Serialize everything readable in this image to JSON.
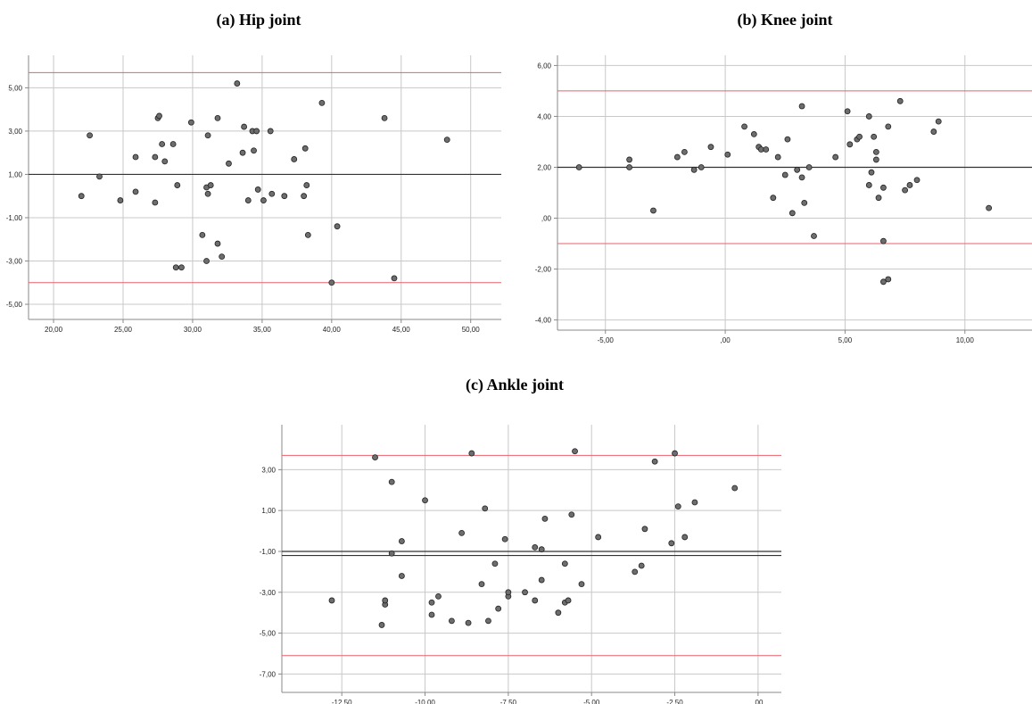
{
  "colors": {
    "grid": "#c8c8c8",
    "frame": "#8a8a8a",
    "limit": "#e8616b",
    "mean": "#333333",
    "point": "#6d6d6d"
  },
  "panels": [
    {
      "title": "(a) Hip joint"
    },
    {
      "title": "(b) Knee joint"
    },
    {
      "title": "(c) Ankle joint"
    }
  ],
  "chart_data": [
    {
      "type": "scatter",
      "title": "(a) Hip joint",
      "xlabel": "",
      "ylabel": "",
      "xlim": [
        18.2,
        52.2
      ],
      "ylim": [
        -5.7,
        6.5
      ],
      "grid": true,
      "xticks": [
        20,
        25,
        30,
        35,
        40,
        45,
        50
      ],
      "xtick_labels": [
        "20,00",
        "25,00",
        "30,00",
        "35,00",
        "40,00",
        "45,00",
        "50,00"
      ],
      "yticks": [
        -5,
        -3,
        -1,
        1,
        3,
        5
      ],
      "ytick_labels": [
        "-5,00",
        "-3,00",
        "-1,00",
        "1,00",
        "3,00",
        "5,00"
      ],
      "mean_line": 1.0,
      "limit_lines": [
        5.7,
        -4.0
      ],
      "points": [
        [
          22,
          0
        ],
        [
          22.6,
          2.8
        ],
        [
          23.3,
          0.9
        ],
        [
          24.8,
          -0.2
        ],
        [
          25.9,
          0.2
        ],
        [
          25.9,
          1.8
        ],
        [
          27.3,
          1.8
        ],
        [
          27.3,
          -0.3
        ],
        [
          27.5,
          3.6
        ],
        [
          27.6,
          3.7
        ],
        [
          27.8,
          2.4
        ],
        [
          28,
          1.6
        ],
        [
          28.6,
          2.4
        ],
        [
          28.8,
          -3.3
        ],
        [
          28.9,
          0.5
        ],
        [
          29.2,
          -3.3
        ],
        [
          29.9,
          3.4
        ],
        [
          30.7,
          -1.8
        ],
        [
          31,
          0.4
        ],
        [
          31,
          -3
        ],
        [
          31.1,
          0.1
        ],
        [
          31.1,
          2.8
        ],
        [
          31.3,
          0.5
        ],
        [
          31.8,
          3.6
        ],
        [
          31.8,
          -2.2
        ],
        [
          32.1,
          -2.8
        ],
        [
          32.6,
          1.5
        ],
        [
          33.2,
          5.2
        ],
        [
          33.6,
          2
        ],
        [
          33.7,
          3.2
        ],
        [
          34,
          -0.2
        ],
        [
          34.3,
          3
        ],
        [
          34.4,
          2.1
        ],
        [
          34.6,
          3
        ],
        [
          34.7,
          0.3
        ],
        [
          35.1,
          -0.2
        ],
        [
          35.6,
          3
        ],
        [
          35.7,
          0.1
        ],
        [
          36.6,
          0
        ],
        [
          37.3,
          1.7
        ],
        [
          38,
          0
        ],
        [
          38.1,
          2.2
        ],
        [
          38.2,
          0.5
        ],
        [
          38.3,
          -1.8
        ],
        [
          39.3,
          4.3
        ],
        [
          40,
          -4
        ],
        [
          40.4,
          -1.4
        ],
        [
          43.8,
          3.6
        ],
        [
          44.5,
          -3.8
        ],
        [
          48.3,
          2.6
        ]
      ]
    },
    {
      "type": "scatter",
      "title": "(b) Knee joint",
      "xlabel": "",
      "ylabel": "",
      "xlim": [
        -7.0,
        12.8
      ],
      "ylim": [
        -4.4,
        6.4
      ],
      "grid": true,
      "xticks": [
        -5,
        0,
        5,
        10
      ],
      "xtick_labels": [
        "-5,00",
        ",00",
        "5,00",
        "10,00"
      ],
      "yticks": [
        -4,
        -2,
        0,
        2,
        4,
        6
      ],
      "ytick_labels": [
        "-4,00",
        "-2,00",
        ",00",
        "2,00",
        "4,00",
        "6,00"
      ],
      "mean_line": 2.0,
      "limit_lines": [
        5.0,
        -1.0
      ],
      "points": [
        [
          -6.1,
          2
        ],
        [
          -4,
          2
        ],
        [
          -4,
          2.3
        ],
        [
          -3,
          0.3
        ],
        [
          -2,
          2.4
        ],
        [
          -1.7,
          2.6
        ],
        [
          -1.3,
          1.9
        ],
        [
          -1,
          2
        ],
        [
          -0.6,
          2.8
        ],
        [
          0.1,
          2.5
        ],
        [
          0.8,
          3.6
        ],
        [
          1.2,
          3.3
        ],
        [
          1.4,
          2.8
        ],
        [
          1.5,
          2.7
        ],
        [
          1.7,
          2.7
        ],
        [
          2,
          0.8
        ],
        [
          2.2,
          2.4
        ],
        [
          2.5,
          1.7
        ],
        [
          2.6,
          3.1
        ],
        [
          2.8,
          0.2
        ],
        [
          3,
          1.9
        ],
        [
          3.2,
          1.6
        ],
        [
          3.2,
          4.4
        ],
        [
          3.3,
          0.6
        ],
        [
          3.5,
          2
        ],
        [
          3.7,
          -0.7
        ],
        [
          4.6,
          2.4
        ],
        [
          5.1,
          4.2
        ],
        [
          5.2,
          2.9
        ],
        [
          5.5,
          3.1
        ],
        [
          5.6,
          3.2
        ],
        [
          6,
          1.3
        ],
        [
          6,
          4
        ],
        [
          6.1,
          1.8
        ],
        [
          6.2,
          3.2
        ],
        [
          6.3,
          2.3
        ],
        [
          6.3,
          2.6
        ],
        [
          6.4,
          0.8
        ],
        [
          6.6,
          1.2
        ],
        [
          6.6,
          -0.9
        ],
        [
          6.6,
          -2.5
        ],
        [
          6.8,
          -2.4
        ],
        [
          6.8,
          3.6
        ],
        [
          7.3,
          4.6
        ],
        [
          7.5,
          1.1
        ],
        [
          7.7,
          1.3
        ],
        [
          8,
          1.5
        ],
        [
          8.7,
          3.4
        ],
        [
          8.9,
          3.8
        ],
        [
          11,
          0.4
        ]
      ]
    },
    {
      "type": "scatter",
      "title": "(c) Ankle joint",
      "xlabel": "",
      "ylabel": "",
      "xlim": [
        -14.3,
        0.7
      ],
      "ylim": [
        -7.9,
        5.2
      ],
      "grid": true,
      "xticks": [
        -12.5,
        -10,
        -7.5,
        -5,
        -2.5,
        0
      ],
      "xtick_labels": [
        "-12,50",
        "-10,00",
        "-7,50",
        "-5,00",
        "-2,50",
        ",00"
      ],
      "yticks": [
        -7,
        -5,
        -3,
        -1,
        1,
        3
      ],
      "ytick_labels": [
        "-7,00",
        "-5,00",
        "-3,00",
        "-1,00",
        "1,00",
        "3,00"
      ],
      "mean_lines": [
        -1.0,
        -1.2
      ],
      "limit_lines": [
        3.7,
        -6.1
      ],
      "points": [
        [
          -12.8,
          -3.4
        ],
        [
          -11.5,
          3.6
        ],
        [
          -11.3,
          -4.6
        ],
        [
          -11.2,
          -3.6
        ],
        [
          -11.2,
          -3.4
        ],
        [
          -11,
          -1.1
        ],
        [
          -11,
          2.4
        ],
        [
          -10.7,
          -0.5
        ],
        [
          -10.7,
          -2.2
        ],
        [
          -10,
          1.5
        ],
        [
          -9.8,
          -3.5
        ],
        [
          -9.8,
          -4.1
        ],
        [
          -9.6,
          -3.2
        ],
        [
          -9.2,
          -4.4
        ],
        [
          -8.9,
          -0.1
        ],
        [
          -8.7,
          -4.5
        ],
        [
          -8.6,
          3.8
        ],
        [
          -8.2,
          1.1
        ],
        [
          -8.1,
          -4.4
        ],
        [
          -8.3,
          -2.6
        ],
        [
          -7.9,
          -1.6
        ],
        [
          -7.8,
          -3.8
        ],
        [
          -7.6,
          -0.4
        ],
        [
          -7.5,
          -3.2
        ],
        [
          -7.5,
          -3
        ],
        [
          -7.0,
          -3
        ],
        [
          -6.7,
          -3.4
        ],
        [
          -6.7,
          -0.8
        ],
        [
          -6.5,
          -0.9
        ],
        [
          -6.5,
          -2.4
        ],
        [
          -6.4,
          0.6
        ],
        [
          -6.0,
          -4
        ],
        [
          -5.8,
          -3.5
        ],
        [
          -5.8,
          -1.6
        ],
        [
          -5.7,
          -3.4
        ],
        [
          -5.6,
          0.8
        ],
        [
          -5.5,
          3.9
        ],
        [
          -5.3,
          -2.6
        ],
        [
          -4.8,
          -0.3
        ],
        [
          -3.7,
          -2
        ],
        [
          -3.5,
          -1.7
        ],
        [
          -3.4,
          0.1
        ],
        [
          -3.1,
          3.4
        ],
        [
          -2.6,
          -0.6
        ],
        [
          -2.5,
          3.8
        ],
        [
          -2.4,
          1.2
        ],
        [
          -2.2,
          -0.3
        ],
        [
          -1.9,
          1.4
        ],
        [
          -0.7,
          2.1
        ]
      ]
    }
  ]
}
